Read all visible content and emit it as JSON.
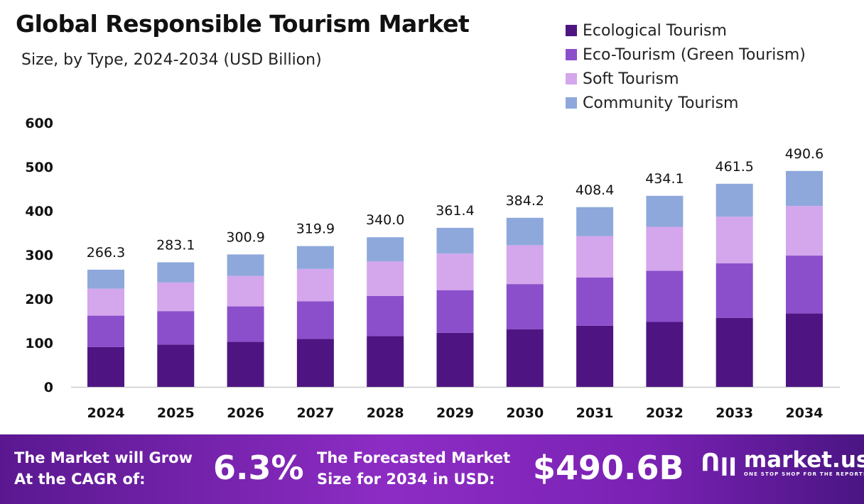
{
  "chart_data": {
    "type": "bar",
    "stacked": true,
    "title": "Global Responsible Tourism Market",
    "subtitle": "Size, by Type, 2024-2034 (USD Billion)",
    "categories": [
      "2024",
      "2025",
      "2026",
      "2027",
      "2028",
      "2029",
      "2030",
      "2031",
      "2032",
      "2033",
      "2034"
    ],
    "totals": [
      "266.3",
      "283.1",
      "300.9",
      "319.9",
      "340.0",
      "361.4",
      "384.2",
      "408.4",
      "434.1",
      "461.5",
      "490.6"
    ],
    "series": [
      {
        "name": "Ecological Tourism",
        "color": "#4e1582",
        "values": [
          90.5,
          96.3,
          102.3,
          108.8,
          115.6,
          122.9,
          130.6,
          138.9,
          147.6,
          156.9,
          166.8
        ]
      },
      {
        "name": "Eco-Tourism (Green Tourism)",
        "color": "#8b4fcb",
        "values": [
          71.4,
          75.9,
          80.6,
          85.7,
          91.1,
          96.9,
          103.0,
          109.5,
          116.3,
          123.7,
          131.5
        ]
      },
      {
        "name": "Soft Tourism",
        "color": "#d4a6ec",
        "values": [
          61.2,
          65.1,
          69.2,
          73.6,
          78.2,
          83.1,
          88.4,
          93.9,
          99.8,
          106.1,
          112.8
        ]
      },
      {
        "name": "Community Tourism",
        "color": "#8ea8dc",
        "values": [
          43.2,
          45.8,
          48.8,
          51.8,
          55.1,
          58.5,
          62.2,
          66.1,
          70.4,
          74.8,
          79.5
        ]
      }
    ],
    "yticks": [
      "0",
      "100",
      "200",
      "300",
      "400",
      "500",
      "600"
    ],
    "ylim": [
      0,
      600
    ],
    "grid": false,
    "legend_position": "top-right"
  },
  "footer": {
    "cagr_label_1": "The Market will Grow",
    "cagr_label_2": "At the CAGR of:",
    "cagr_value": "6.3%",
    "forecast_label_1": "The Forecasted Market",
    "forecast_label_2": "Size for 2034 in USD:",
    "forecast_value": "$490.6B",
    "brand": "market.us",
    "tagline": "ONE STOP SHOP FOR THE REPORTS"
  }
}
